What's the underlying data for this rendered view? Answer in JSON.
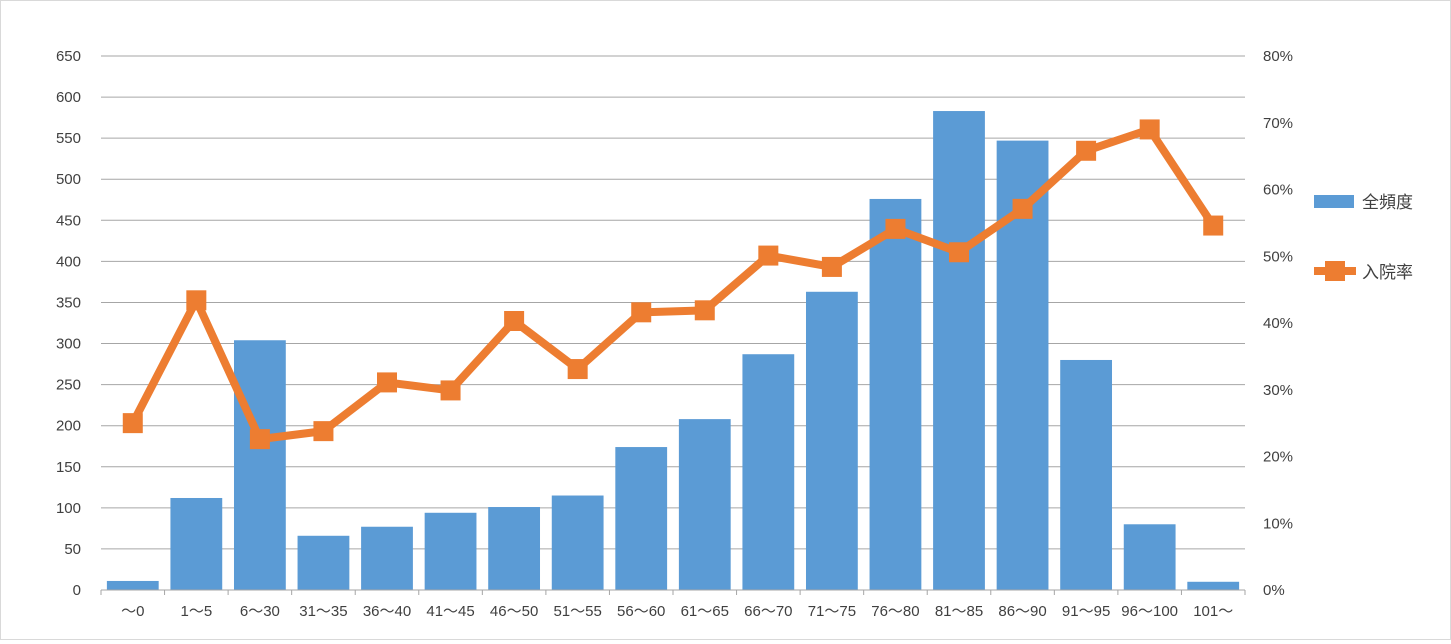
{
  "chart_data": {
    "type": "bar",
    "title": "",
    "xlabel": "",
    "ylabel": "",
    "categories": [
      "～0",
      "1～5",
      "6～30",
      "31～35",
      "36～40",
      "41～45",
      "46～50",
      "51～55",
      "56～60",
      "61～65",
      "66～70",
      "71～75",
      "76～80",
      "81～85",
      "86～90",
      "91～95",
      "96～100",
      "101～"
    ],
    "series": [
      {
        "name": "全頻度",
        "type": "bar",
        "axis": "left",
        "color": "#5b9bd5",
        "values": [
          11,
          112,
          304,
          66,
          77,
          94,
          101,
          115,
          174,
          208,
          287,
          363,
          476,
          583,
          547,
          280,
          80,
          10
        ]
      },
      {
        "name": "入院率",
        "type": "line",
        "axis": "right",
        "color": "#ed7d31",
        "marker": "square",
        "values": [
          0.25,
          0.434,
          0.226,
          0.238,
          0.311,
          0.299,
          0.403,
          0.331,
          0.416,
          0.419,
          0.501,
          0.484,
          0.541,
          0.506,
          0.571,
          0.658,
          0.69,
          0.546
        ]
      }
    ],
    "ylim": [
      0,
      650
    ],
    "yticks": [
      "0",
      "50",
      "100",
      "150",
      "200",
      "250",
      "300",
      "350",
      "400",
      "450",
      "500",
      "550",
      "600",
      "650"
    ],
    "y2lim": [
      0,
      0.8
    ],
    "y2ticks": [
      "0%",
      "10%",
      "20%",
      "30%",
      "40%",
      "50%",
      "60%",
      "70%",
      "80%"
    ],
    "grid": true,
    "legend_position": "right"
  }
}
